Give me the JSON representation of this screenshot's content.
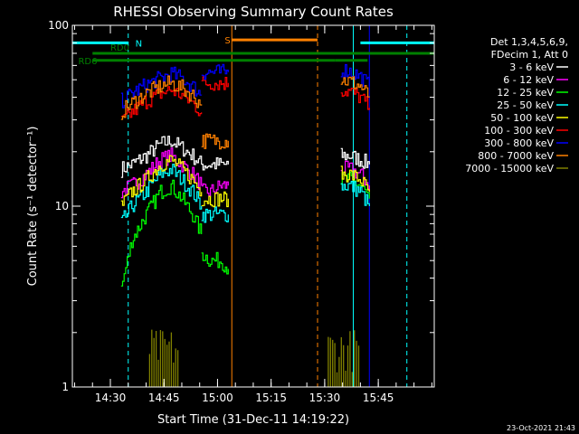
{
  "chart_data": {
    "type": "line",
    "title": "RHESSI Observing Summary Count Rates",
    "xlabel": "Start Time (31-Dec-11 14:19:22)",
    "ylabel": "Count Rate (s⁻¹ detector⁻¹)",
    "y_scale": "log",
    "ylim": [
      1,
      100
    ],
    "xlim": [
      "14:19:22",
      "16:00:40"
    ],
    "x_ticks": [
      "14:30",
      "14:45",
      "15:00",
      "15:15",
      "15:30",
      "15:45"
    ],
    "y_ticks": [
      "1",
      "10",
      "100"
    ],
    "footer_date": "23-Oct-2021 21:43",
    "legend": {
      "header_lines": [
        "Det 1,3,4,5,6,9,",
        "FDecim 1, Att 0"
      ],
      "placement": "right"
    },
    "series": [
      {
        "name": "3 - 6 keV",
        "color": "#ffffff",
        "segments": [
          {
            "x": [
              "14:33:00",
              "14:36:00",
              "14:40:00",
              "14:44:00",
              "14:47:00",
              "14:50:00",
              "14:53:00",
              "14:55:30"
            ],
            "y": [
              16,
              17,
              19,
              22,
              23,
              21,
              19,
              17
            ]
          },
          {
            "x": [
              "14:55:30",
              "14:58:00",
              "15:01:00",
              "15:03:00"
            ],
            "y": [
              17,
              17,
              17,
              17
            ]
          },
          {
            "x": [
              "15:34:30",
              "15:37:00",
              "15:40:00",
              "15:42:30"
            ],
            "y": [
              19,
              19,
              18,
              17
            ]
          }
        ]
      },
      {
        "name": "6 - 12 keV",
        "color": "#ff00ff",
        "segments": [
          {
            "x": [
              "14:33:00",
              "14:36:00",
              "14:40:00",
              "14:44:00",
              "14:47:00",
              "14:50:00",
              "14:53:00",
              "14:55:30"
            ],
            "y": [
              12,
              13,
              15,
              18,
              19,
              17,
              15,
              13
            ]
          },
          {
            "x": [
              "14:55:30",
              "14:58:00",
              "15:01:00",
              "15:03:00"
            ],
            "y": [
              12,
              12,
              13,
              13
            ]
          },
          {
            "x": [
              "15:34:30",
              "15:37:00",
              "15:40:00",
              "15:42:30"
            ],
            "y": [
              16,
              16,
              15,
              13
            ]
          }
        ]
      },
      {
        "name": "12 - 25 keV",
        "color": "#00ff00",
        "segments": [
          {
            "x": [
              "14:33:00",
              "14:36:00",
              "14:40:00",
              "14:44:00",
              "14:47:00",
              "14:50:00",
              "14:53:00",
              "14:55:30"
            ],
            "y": [
              3.5,
              6.5,
              9,
              12,
              13,
              11,
              9,
              7
            ]
          },
          {
            "x": [
              "14:55:30",
              "14:58:00",
              "15:01:00",
              "15:03:00"
            ],
            "y": [
              5.5,
              5,
              5,
              4.5
            ]
          },
          {
            "x": [
              "15:34:30",
              "15:37:00",
              "15:40:00",
              "15:42:30"
            ],
            "y": [
              14,
              14,
              13,
              11
            ]
          }
        ]
      },
      {
        "name": "25 - 50 keV",
        "color": "#00ffff",
        "segments": [
          {
            "x": [
              "14:33:00",
              "14:36:00",
              "14:40:00",
              "14:44:00",
              "14:47:00",
              "14:50:00",
              "14:53:00",
              "14:55:30"
            ],
            "y": [
              8,
              10,
              12,
              15,
              16,
              14,
              12,
              10
            ]
          },
          {
            "x": [
              "14:55:30",
              "14:58:00",
              "15:01:00",
              "15:03:00"
            ],
            "y": [
              9,
              9,
              9,
              9
            ]
          },
          {
            "x": [
              "15:34:30",
              "15:37:00",
              "15:40:00",
              "15:42:30"
            ],
            "y": [
              13,
              13,
              12,
              10
            ]
          }
        ]
      },
      {
        "name": "50 - 100 keV",
        "color": "#ffff00",
        "segments": [
          {
            "x": [
              "14:33:00",
              "14:36:00",
              "14:40:00",
              "14:44:00",
              "14:47:00",
              "14:50:00",
              "14:53:00",
              "14:55:30"
            ],
            "y": [
              10,
              12,
              14,
              17,
              18,
              16,
              14,
              12
            ]
          },
          {
            "x": [
              "14:55:30",
              "14:58:00",
              "15:01:00",
              "15:03:00"
            ],
            "y": [
              11,
              11,
              11,
              11
            ]
          },
          {
            "x": [
              "15:34:30",
              "15:37:00",
              "15:40:00",
              "15:42:30"
            ],
            "y": [
              15,
              15,
              14,
              12
            ]
          }
        ]
      },
      {
        "name": "100 - 300 keV",
        "color": "#ff0000",
        "segments": [
          {
            "x": [
              "14:33:00",
              "14:36:00",
              "14:40:00",
              "14:44:00",
              "14:47:00",
              "14:50:00",
              "14:53:00",
              "14:55:30"
            ],
            "y": [
              29,
              33,
              38,
              42,
              44,
              41,
              37,
              33
            ]
          },
          {
            "x": [
              "14:55:30",
              "14:58:00",
              "15:01:00",
              "15:03:00"
            ],
            "y": [
              48,
              48,
              48,
              48
            ]
          },
          {
            "x": [
              "15:34:30",
              "15:37:00",
              "15:40:00",
              "15:42:30"
            ],
            "y": [
              44,
              43,
              40,
              35
            ]
          }
        ]
      },
      {
        "name": "300 - 800 keV",
        "color": "#0000ff",
        "segments": [
          {
            "x": [
              "14:33:00",
              "14:36:00",
              "14:40:00",
              "14:44:00",
              "14:47:00",
              "14:50:00",
              "14:53:00",
              "14:55:30"
            ],
            "y": [
              38,
              42,
              47,
              51,
              54,
              51,
              46,
              41
            ]
          },
          {
            "x": [
              "14:55:30",
              "14:58:00",
              "15:01:00",
              "15:03:00"
            ],
            "y": [
              55,
              55,
              55,
              55
            ]
          },
          {
            "x": [
              "15:34:30",
              "15:37:00",
              "15:40:00",
              "15:42:30"
            ],
            "y": [
              57,
              56,
              52,
              46
            ]
          }
        ]
      },
      {
        "name": "800 - 7000 keV",
        "color": "#ff8000",
        "segments": [
          {
            "x": [
              "14:33:00",
              "14:36:00",
              "14:40:00",
              "14:44:00",
              "14:47:00",
              "14:50:00",
              "14:53:00",
              "14:55:30"
            ],
            "y": [
              33,
              37,
              42,
              46,
              48,
              45,
              41,
              36
            ]
          },
          {
            "x": [
              "14:55:30",
              "14:58:00",
              "15:01:00",
              "15:03:00"
            ],
            "y": [
              23,
              23,
              23,
              23
            ]
          },
          {
            "x": [
              "15:34:30",
              "15:37:00",
              "15:40:00",
              "15:42:30"
            ],
            "y": [
              50,
              49,
              46,
              40
            ]
          }
        ]
      },
      {
        "name": "7000 - 15000 keV",
        "color": "#808000",
        "segments": [
          {
            "x": [
              "14:41:00",
              "14:44:00",
              "14:47:00",
              "14:49:00"
            ],
            "y": [
              2.0,
              2.0,
              2.0,
              2.0
            ]
          },
          {
            "x": [
              "15:31:00",
              "15:34:00",
              "15:37:00",
              "15:40:00"
            ],
            "y": [
              2.0,
              2.0,
              2.0,
              2.0
            ]
          }
        ]
      }
    ],
    "flags": [
      {
        "label": "N",
        "color": "#00ffff",
        "y": 80,
        "segments": [
          [
            "14:19:22",
            "14:35:00"
          ],
          [
            "15:40:00",
            "16:00:40"
          ]
        ]
      },
      {
        "label": "S",
        "color": "#ff8000",
        "y": 83,
        "segments": [
          [
            "15:04:00",
            "15:28:00"
          ]
        ]
      },
      {
        "label": "RD0",
        "color": "#008000",
        "y": 70,
        "segments": [
          [
            "14:25:00",
            "16:00:40"
          ]
        ]
      },
      {
        "label": "RD6",
        "color": "#008000",
        "y": 64,
        "segments": [
          [
            "14:25:00",
            "15:33:00"
          ],
          [
            "15:33:00",
            "15:42:00"
          ]
        ]
      }
    ],
    "vlines": [
      {
        "time": "14:35:00",
        "color": "#00ffff",
        "style": "dashed"
      },
      {
        "time": "15:04:00",
        "color": "#ff8000",
        "style": "solid"
      },
      {
        "time": "15:28:00",
        "color": "#ff8000",
        "style": "dashed"
      },
      {
        "time": "15:38:00",
        "color": "#00ffff",
        "style": "solid"
      },
      {
        "time": "15:42:30",
        "color": "#0000ff",
        "style": "solid"
      },
      {
        "time": "15:53:00",
        "color": "#00ffff",
        "style": "dashed"
      }
    ]
  }
}
